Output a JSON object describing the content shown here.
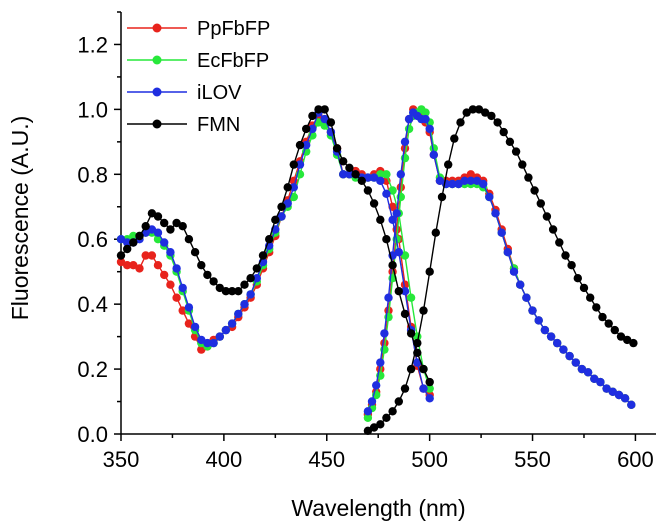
{
  "chart_data": {
    "type": "line",
    "xlabel": "Wavelength (nm)",
    "ylabel": "Fluorescence (A.U.)",
    "xlim": [
      350,
      610
    ],
    "ylim": [
      0,
      1.3
    ],
    "xticks": [
      350,
      400,
      450,
      500,
      550,
      600
    ],
    "yticks": [
      0.0,
      0.2,
      0.4,
      0.6,
      0.8,
      1.0,
      1.2
    ],
    "ytick_labels": [
      "0.0",
      "0.2",
      "0.4",
      "0.6",
      "0.8",
      "1.0",
      "1.2"
    ],
    "grid": false,
    "legend_position": "top-left",
    "series": [
      {
        "name": "PpFbFP",
        "color": "#e8231c",
        "curves": [
          {
            "x": [
              350,
              353,
              356,
              359,
              362,
              365,
              368,
              371,
              374,
              377,
              380,
              383,
              386,
              389,
              392,
              395,
              398,
              401,
              404,
              407,
              410,
              413,
              416,
              419,
              422,
              425,
              428,
              431,
              434,
              437,
              440,
              443,
              446,
              449,
              452,
              455,
              458,
              461,
              464,
              467,
              470,
              473,
              476,
              479,
              482,
              485,
              488,
              491,
              494,
              497,
              500
            ],
            "y": [
              0.53,
              0.52,
              0.52,
              0.51,
              0.55,
              0.55,
              0.52,
              0.49,
              0.46,
              0.42,
              0.38,
              0.34,
              0.3,
              0.26,
              0.27,
              0.29,
              0.3,
              0.32,
              0.33,
              0.36,
              0.39,
              0.42,
              0.46,
              0.51,
              0.56,
              0.61,
              0.67,
              0.72,
              0.78,
              0.84,
              0.9,
              0.95,
              0.98,
              0.96,
              0.93,
              0.88,
              0.8,
              0.8,
              0.81,
              0.8,
              0.79,
              0.8,
              0.81,
              0.78,
              0.7,
              0.6,
              0.46,
              0.33,
              0.21,
              0.14,
              0.12
            ]
          },
          {
            "x": [
              470,
              472,
              474,
              476,
              478,
              480,
              482,
              484,
              486,
              488,
              490,
              492,
              494,
              496,
              498,
              500,
              502,
              505,
              508,
              511,
              514,
              517,
              520,
              523,
              526,
              529,
              532,
              535,
              538,
              541,
              544,
              547,
              550,
              553,
              556,
              559,
              562,
              565,
              568,
              571,
              574,
              577,
              580,
              583,
              586,
              589,
              592,
              595,
              598
            ],
            "y": [
              0.06,
              0.09,
              0.13,
              0.2,
              0.28,
              0.38,
              0.5,
              0.63,
              0.76,
              0.88,
              0.97,
              1.0,
              0.99,
              0.98,
              0.96,
              0.93,
              0.86,
              0.78,
              0.78,
              0.78,
              0.78,
              0.79,
              0.8,
              0.79,
              0.78,
              0.74,
              0.69,
              0.63,
              0.57,
              0.51,
              0.46,
              0.42,
              0.38,
              0.35,
              0.32,
              0.3,
              0.28,
              0.26,
              0.24,
              0.22,
              0.2,
              0.19,
              0.17,
              0.16,
              0.14,
              0.13,
              0.12,
              0.11,
              0.09
            ]
          }
        ]
      },
      {
        "name": "EcFbFP",
        "color": "#27e83a",
        "curves": [
          {
            "x": [
              350,
              353,
              356,
              359,
              362,
              365,
              368,
              371,
              374,
              377,
              380,
              383,
              386,
              389,
              392,
              395,
              398,
              401,
              404,
              407,
              410,
              413,
              416,
              419,
              422,
              425,
              428,
              431,
              434,
              437,
              440,
              443,
              446,
              449,
              452,
              455,
              458,
              461,
              464,
              467,
              470,
              473,
              476,
              479,
              482,
              485,
              488,
              491,
              494,
              497,
              500
            ],
            "y": [
              0.6,
              0.6,
              0.61,
              0.61,
              0.62,
              0.62,
              0.6,
              0.58,
              0.55,
              0.5,
              0.44,
              0.38,
              0.32,
              0.28,
              0.27,
              0.28,
              0.3,
              0.32,
              0.34,
              0.37,
              0.4,
              0.43,
              0.47,
              0.52,
              0.57,
              0.62,
              0.67,
              0.7,
              0.73,
              0.8,
              0.87,
              0.92,
              0.96,
              0.95,
              0.92,
              0.86,
              0.8,
              0.8,
              0.79,
              0.79,
              0.79,
              0.79,
              0.8,
              0.8,
              0.75,
              0.68,
              0.55,
              0.42,
              0.3,
              0.2,
              0.14
            ]
          },
          {
            "x": [
              470,
              472,
              474,
              476,
              478,
              480,
              482,
              484,
              486,
              488,
              490,
              492,
              494,
              496,
              498,
              500,
              502,
              505,
              508,
              511,
              514,
              517,
              520,
              523,
              526,
              529,
              532,
              535,
              538,
              541,
              544,
              547,
              550,
              553,
              556,
              559,
              562,
              565,
              568,
              571,
              574,
              577,
              580,
              583,
              586,
              589,
              592,
              595,
              598
            ],
            "y": [
              0.05,
              0.08,
              0.12,
              0.18,
              0.26,
              0.36,
              0.48,
              0.6,
              0.73,
              0.85,
              0.94,
              0.98,
              0.99,
              1.0,
              0.99,
              0.96,
              0.88,
              0.79,
              0.77,
              0.77,
              0.77,
              0.77,
              0.77,
              0.77,
              0.76,
              0.73,
              0.68,
              0.62,
              0.56,
              0.51,
              0.46,
              0.42,
              0.38,
              0.35,
              0.32,
              0.3,
              0.28,
              0.26,
              0.24,
              0.22,
              0.2,
              0.19,
              0.17,
              0.16,
              0.14,
              0.13,
              0.12,
              0.11,
              0.09
            ]
          }
        ]
      },
      {
        "name": "iLOV",
        "color": "#1f2ee0",
        "curves": [
          {
            "x": [
              350,
              353,
              356,
              359,
              362,
              365,
              368,
              371,
              374,
              377,
              380,
              383,
              386,
              389,
              392,
              395,
              398,
              401,
              404,
              407,
              410,
              413,
              416,
              419,
              422,
              425,
              428,
              431,
              434,
              437,
              440,
              443,
              446,
              449,
              452,
              455,
              458,
              461,
              464,
              467,
              470,
              473,
              476,
              479,
              482,
              485,
              488,
              491,
              494,
              497,
              500
            ],
            "y": [
              0.6,
              0.59,
              0.59,
              0.6,
              0.62,
              0.63,
              0.62,
              0.59,
              0.56,
              0.51,
              0.45,
              0.39,
              0.33,
              0.29,
              0.28,
              0.28,
              0.3,
              0.32,
              0.34,
              0.37,
              0.4,
              0.43,
              0.48,
              0.53,
              0.58,
              0.63,
              0.67,
              0.71,
              0.76,
              0.83,
              0.89,
              0.94,
              0.99,
              0.97,
              0.93,
              0.87,
              0.8,
              0.8,
              0.8,
              0.79,
              0.79,
              0.79,
              0.78,
              0.74,
              0.66,
              0.56,
              0.44,
              0.32,
              0.22,
              0.14,
              0.11
            ]
          },
          {
            "x": [
              470,
              472,
              474,
              476,
              478,
              480,
              482,
              484,
              486,
              488,
              490,
              492,
              494,
              496,
              498,
              500,
              502,
              505,
              508,
              511,
              514,
              517,
              520,
              523,
              526,
              529,
              532,
              535,
              538,
              541,
              544,
              547,
              550,
              553,
              556,
              559,
              562,
              565,
              568,
              571,
              574,
              577,
              580,
              583,
              586,
              589,
              592,
              595,
              598
            ],
            "y": [
              0.07,
              0.1,
              0.15,
              0.22,
              0.31,
              0.42,
              0.55,
              0.68,
              0.8,
              0.9,
              0.97,
              0.99,
              0.98,
              0.97,
              0.97,
              0.94,
              0.86,
              0.78,
              0.77,
              0.77,
              0.77,
              0.78,
              0.78,
              0.78,
              0.77,
              0.73,
              0.68,
              0.62,
              0.56,
              0.5,
              0.46,
              0.42,
              0.38,
              0.35,
              0.32,
              0.3,
              0.28,
              0.26,
              0.24,
              0.22,
              0.2,
              0.19,
              0.17,
              0.16,
              0.14,
              0.13,
              0.12,
              0.11,
              0.09
            ]
          }
        ]
      },
      {
        "name": "FMN",
        "color": "#000000",
        "curves": [
          {
            "x": [
              350,
              353,
              356,
              359,
              362,
              365,
              368,
              371,
              374,
              377,
              380,
              383,
              386,
              389,
              392,
              395,
              398,
              401,
              404,
              407,
              410,
              413,
              416,
              419,
              422,
              425,
              428,
              431,
              434,
              437,
              440,
              443,
              446,
              449,
              452,
              455,
              458,
              461,
              464,
              467,
              470,
              473,
              476,
              479,
              482,
              485,
              488,
              491,
              494,
              497,
              500
            ],
            "y": [
              0.55,
              0.57,
              0.59,
              0.61,
              0.64,
              0.68,
              0.67,
              0.65,
              0.63,
              0.65,
              0.64,
              0.6,
              0.56,
              0.52,
              0.49,
              0.47,
              0.45,
              0.44,
              0.44,
              0.44,
              0.46,
              0.48,
              0.51,
              0.55,
              0.6,
              0.66,
              0.7,
              0.76,
              0.83,
              0.89,
              0.94,
              0.98,
              1.0,
              1.0,
              0.96,
              0.88,
              0.84,
              0.82,
              0.8,
              0.78,
              0.75,
              0.71,
              0.66,
              0.6,
              0.52,
              0.44,
              0.37,
              0.31,
              0.25,
              0.2,
              0.16
            ]
          },
          {
            "x": [
              470,
              473,
              476,
              479,
              482,
              485,
              488,
              491,
              494,
              497,
              500,
              503,
              506,
              509,
              512,
              515,
              518,
              521,
              524,
              527,
              530,
              533,
              536,
              539,
              542,
              545,
              548,
              551,
              554,
              557,
              560,
              563,
              566,
              569,
              572,
              575,
              578,
              581,
              584,
              587,
              590,
              593,
              596,
              599
            ],
            "y": [
              0.01,
              0.02,
              0.03,
              0.05,
              0.07,
              0.1,
              0.14,
              0.2,
              0.28,
              0.38,
              0.5,
              0.62,
              0.73,
              0.83,
              0.91,
              0.96,
              0.99,
              1.0,
              1.0,
              0.99,
              0.98,
              0.96,
              0.93,
              0.9,
              0.87,
              0.83,
              0.79,
              0.75,
              0.71,
              0.67,
              0.63,
              0.59,
              0.55,
              0.52,
              0.48,
              0.45,
              0.42,
              0.39,
              0.36,
              0.34,
              0.32,
              0.3,
              0.29,
              0.28
            ]
          }
        ]
      }
    ]
  }
}
